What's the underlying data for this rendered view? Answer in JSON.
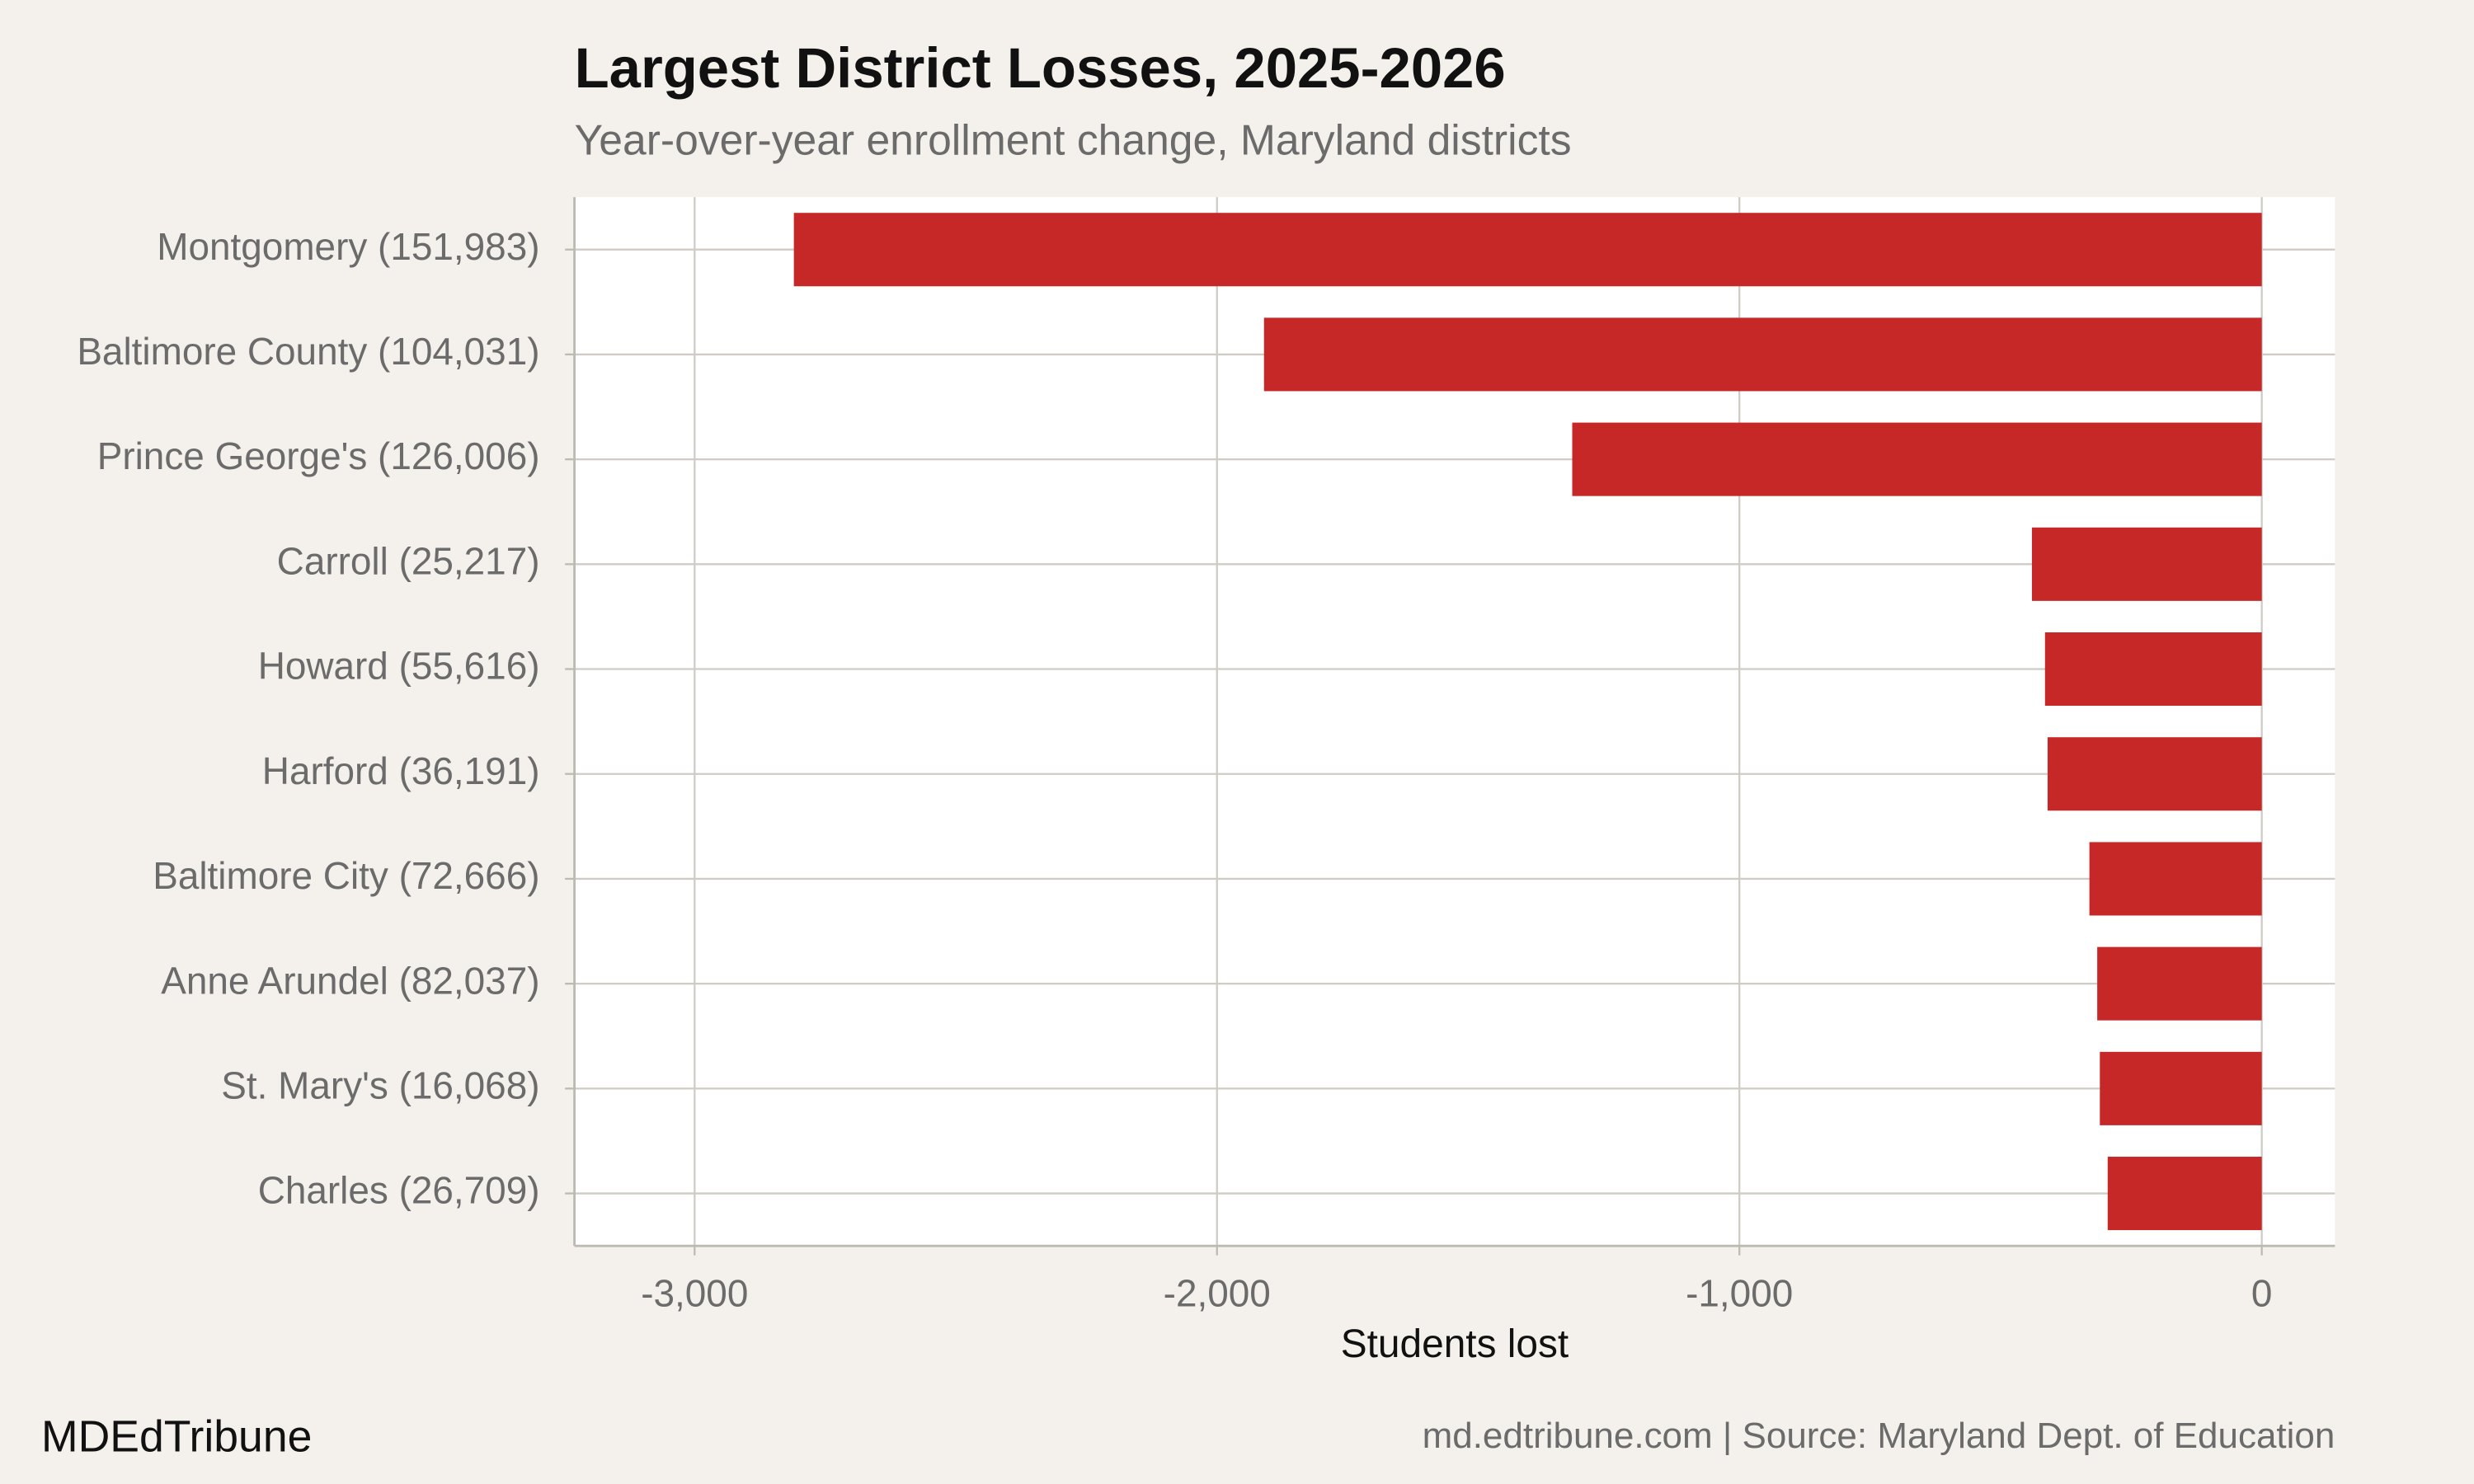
{
  "chart_data": {
    "type": "bar",
    "orientation": "horizontal",
    "title": "Largest District Losses, 2025-2026",
    "subtitle": "Year-over-year enrollment change, Maryland districts",
    "x_label": "Students lost",
    "categories": [
      "Montgomery (151,983)",
      "Baltimore County (104,031)",
      "Prince George's (126,006)",
      "Carroll (25,217)",
      "Howard (55,616)",
      "Harford (36,191)",
      "Baltimore City (72,666)",
      "Anne Arundel (82,037)",
      "St. Mary's (16,068)",
      "Charles (26,709)"
    ],
    "values": [
      -2810,
      -1910,
      -1320,
      -440,
      -415,
      -410,
      -330,
      -315,
      -310,
      -295
    ],
    "color": "#c62828",
    "xlim": [
      -3230,
      140
    ],
    "xticks": [
      {
        "value": -3000,
        "label": "-3,000"
      },
      {
        "value": -2000,
        "label": "-2,000"
      },
      {
        "value": -1000,
        "label": "-1,000"
      },
      0
    ],
    "grid": true,
    "brand": "MDEdTribune",
    "source": "md.edtribune.com | Source: Maryland Dept. of Education"
  }
}
